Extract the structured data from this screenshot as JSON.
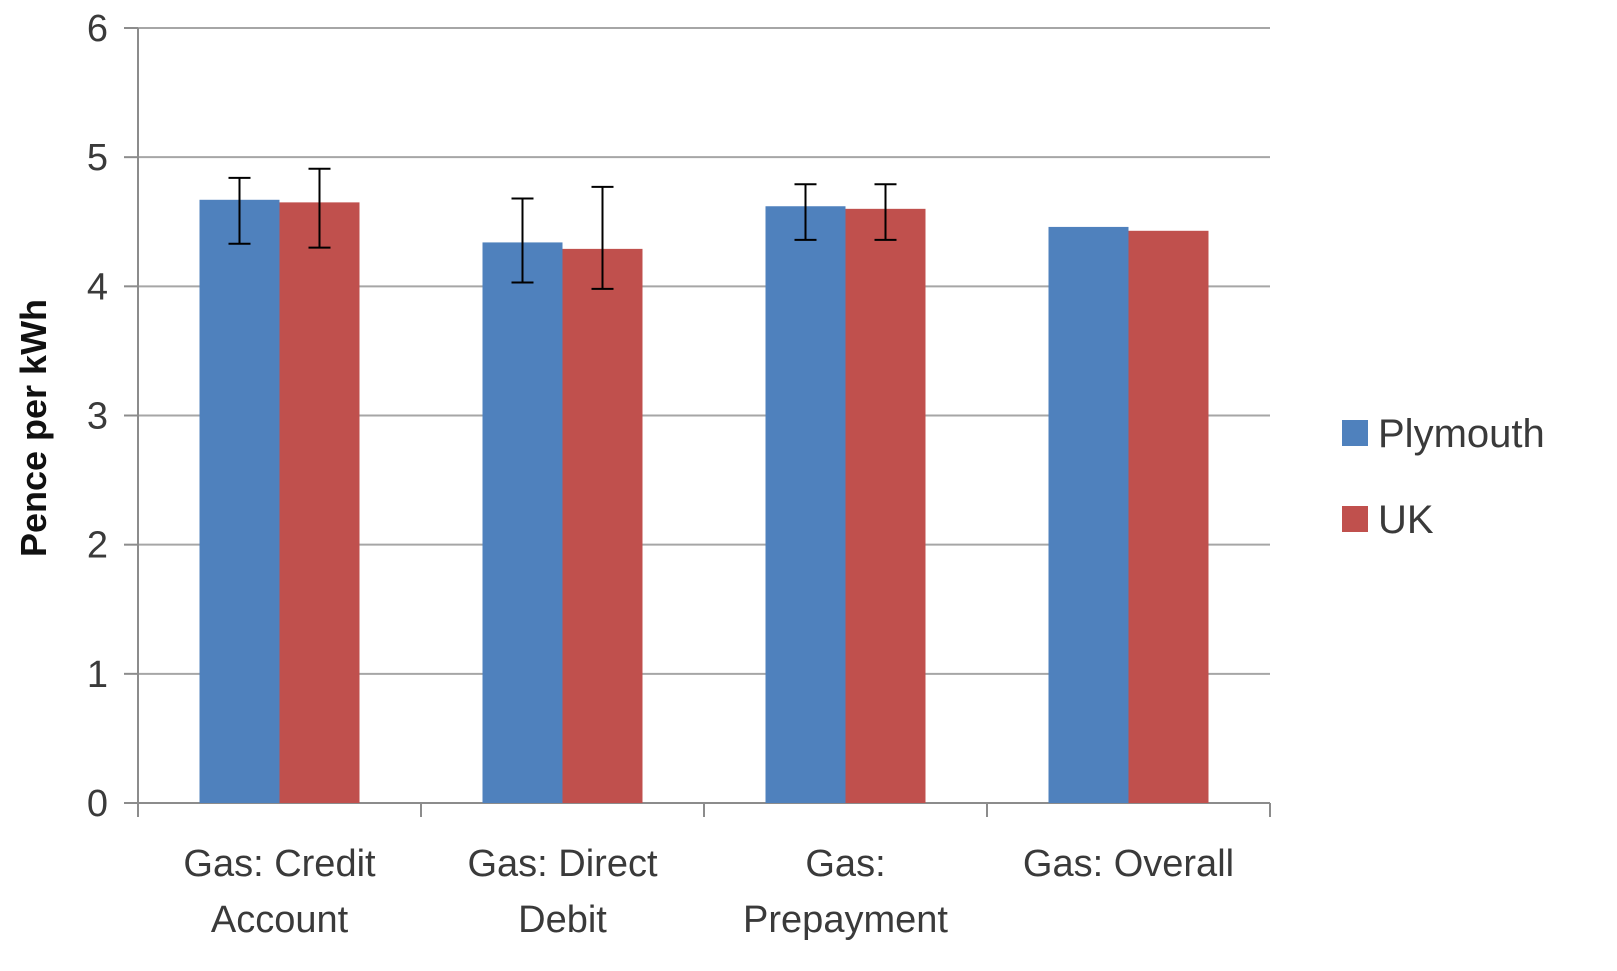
{
  "chart_data": {
    "type": "bar",
    "ylabel": "Pence per kWh",
    "ylim": [
      0,
      6
    ],
    "yticks": [
      0,
      1,
      2,
      3,
      4,
      5,
      6
    ],
    "categories": [
      [
        "Gas: Credit",
        "Account"
      ],
      [
        "Gas: Direct",
        "Debit"
      ],
      [
        "Gas:",
        "Prepayment"
      ],
      [
        "Gas: Overall"
      ]
    ],
    "series": [
      {
        "name": "Plymouth",
        "color": "#4f81bd",
        "values": [
          4.67,
          4.34,
          4.62,
          4.46
        ],
        "error_low": [
          4.33,
          4.03,
          4.36,
          null
        ],
        "error_high": [
          4.84,
          4.68,
          4.79,
          null
        ]
      },
      {
        "name": "UK",
        "color": "#c0504d",
        "values": [
          4.65,
          4.29,
          4.6,
          4.43
        ],
        "error_low": [
          4.3,
          3.98,
          4.36,
          null
        ],
        "error_high": [
          4.91,
          4.77,
          4.79,
          null
        ]
      }
    ],
    "grid": true,
    "legend_position": "right"
  }
}
